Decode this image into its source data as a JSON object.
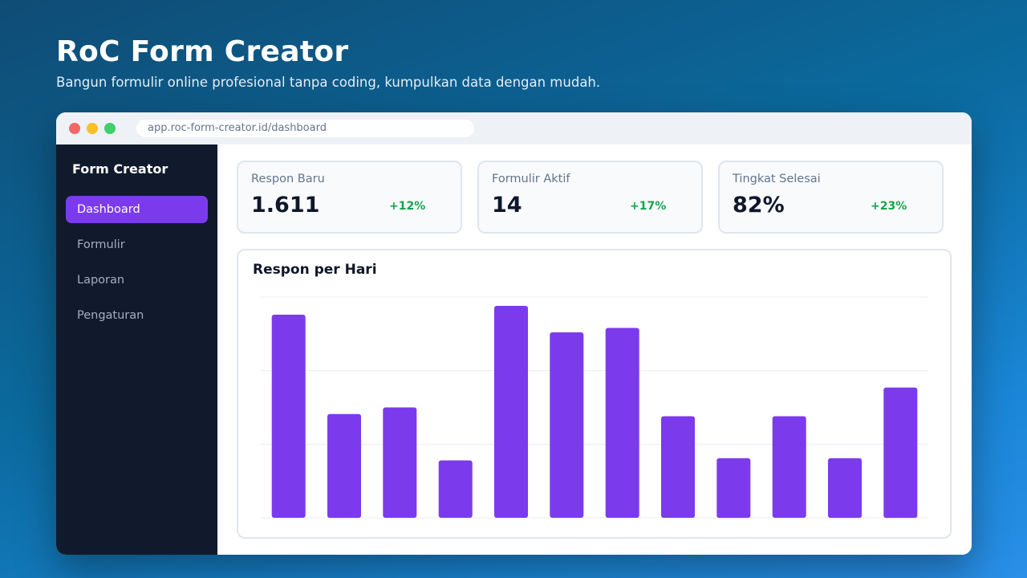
{
  "hero": {
    "title": "RoC Form Creator",
    "subtitle": "Bangun formulir online profesional tanpa coding, kumpulkan data dengan mudah."
  },
  "browser": {
    "url": "app.roc-form-creator.id/dashboard"
  },
  "sidebar": {
    "brand": "Form Creator",
    "items": [
      {
        "label": "Dashboard",
        "active": true
      },
      {
        "label": "Formulir",
        "active": false
      },
      {
        "label": "Laporan",
        "active": false
      },
      {
        "label": "Pengaturan",
        "active": false
      }
    ]
  },
  "stats": [
    {
      "label": "Respon Baru",
      "value": "1.611",
      "delta": "+12%"
    },
    {
      "label": "Formulir Aktif",
      "value": "14",
      "delta": "+17%"
    },
    {
      "label": "Tingkat Selesai",
      "value": "82%",
      "delta": "+23%"
    }
  ],
  "colors": {
    "accent": "#7c3aed",
    "positive": "#16a34a",
    "sidebar_bg": "#111a2c"
  },
  "chart_data": {
    "type": "bar",
    "title": "Respon per Hari",
    "values": [
      92,
      47,
      50,
      26,
      96,
      84,
      86,
      46,
      27,
      46,
      27,
      59
    ],
    "ylim": [
      0,
      100
    ],
    "grid": true,
    "color": "#7c3aed"
  }
}
